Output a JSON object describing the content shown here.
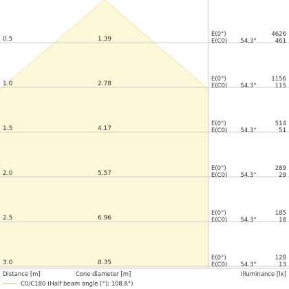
{
  "chart_data": {
    "type": "area",
    "title": "",
    "xlabel": "Cone diameter [m]",
    "ylabel": "Distance [m]",
    "right_label": "Illuminance [lx]",
    "legend": {
      "label": "C0/C180 (Half beam angle [°]: 108.6°)",
      "position": "bottom-left"
    },
    "distance_range": [
      0,
      3.0
    ],
    "grid": true,
    "colors": {
      "cone_fill": "#fdf8d8",
      "cone_edge": "#f0e6a8",
      "grid": "#cccccc",
      "text": "#333333"
    },
    "cone_profile": [
      {
        "distance": 0,
        "cone_diameter": 0
      },
      {
        "distance": 1.0,
        "cone_diameter": 2.78
      }
    ],
    "rows": [
      {
        "distance": "0.5",
        "cone_diameter": "1.39",
        "angle": "54.3°",
        "e0_label": "E(0°)",
        "ec0_label": "E(C0)",
        "e0": "4626",
        "ec0": "461"
      },
      {
        "distance": "1.0",
        "cone_diameter": "2.78",
        "angle": "54.3°",
        "e0_label": "E(0°)",
        "ec0_label": "E(C0)",
        "e0": "1156",
        "ec0": "115"
      },
      {
        "distance": "1.5",
        "cone_diameter": "4.17",
        "angle": "54.3°",
        "e0_label": "E(0°)",
        "ec0_label": "E(C0)",
        "e0": "514",
        "ec0": "51"
      },
      {
        "distance": "2.0",
        "cone_diameter": "5.57",
        "angle": "54.3°",
        "e0_label": "E(0°)",
        "ec0_label": "E(C0)",
        "e0": "289",
        "ec0": "29"
      },
      {
        "distance": "2.5",
        "cone_diameter": "6.96",
        "angle": "54.3°",
        "e0_label": "E(0°)",
        "ec0_label": "E(C0)",
        "e0": "185",
        "ec0": "18"
      },
      {
        "distance": "3.0",
        "cone_diameter": "8.35",
        "angle": "54.3°",
        "e0_label": "E(0°)",
        "ec0_label": "E(C0)",
        "e0": "128",
        "ec0": "13"
      }
    ]
  }
}
